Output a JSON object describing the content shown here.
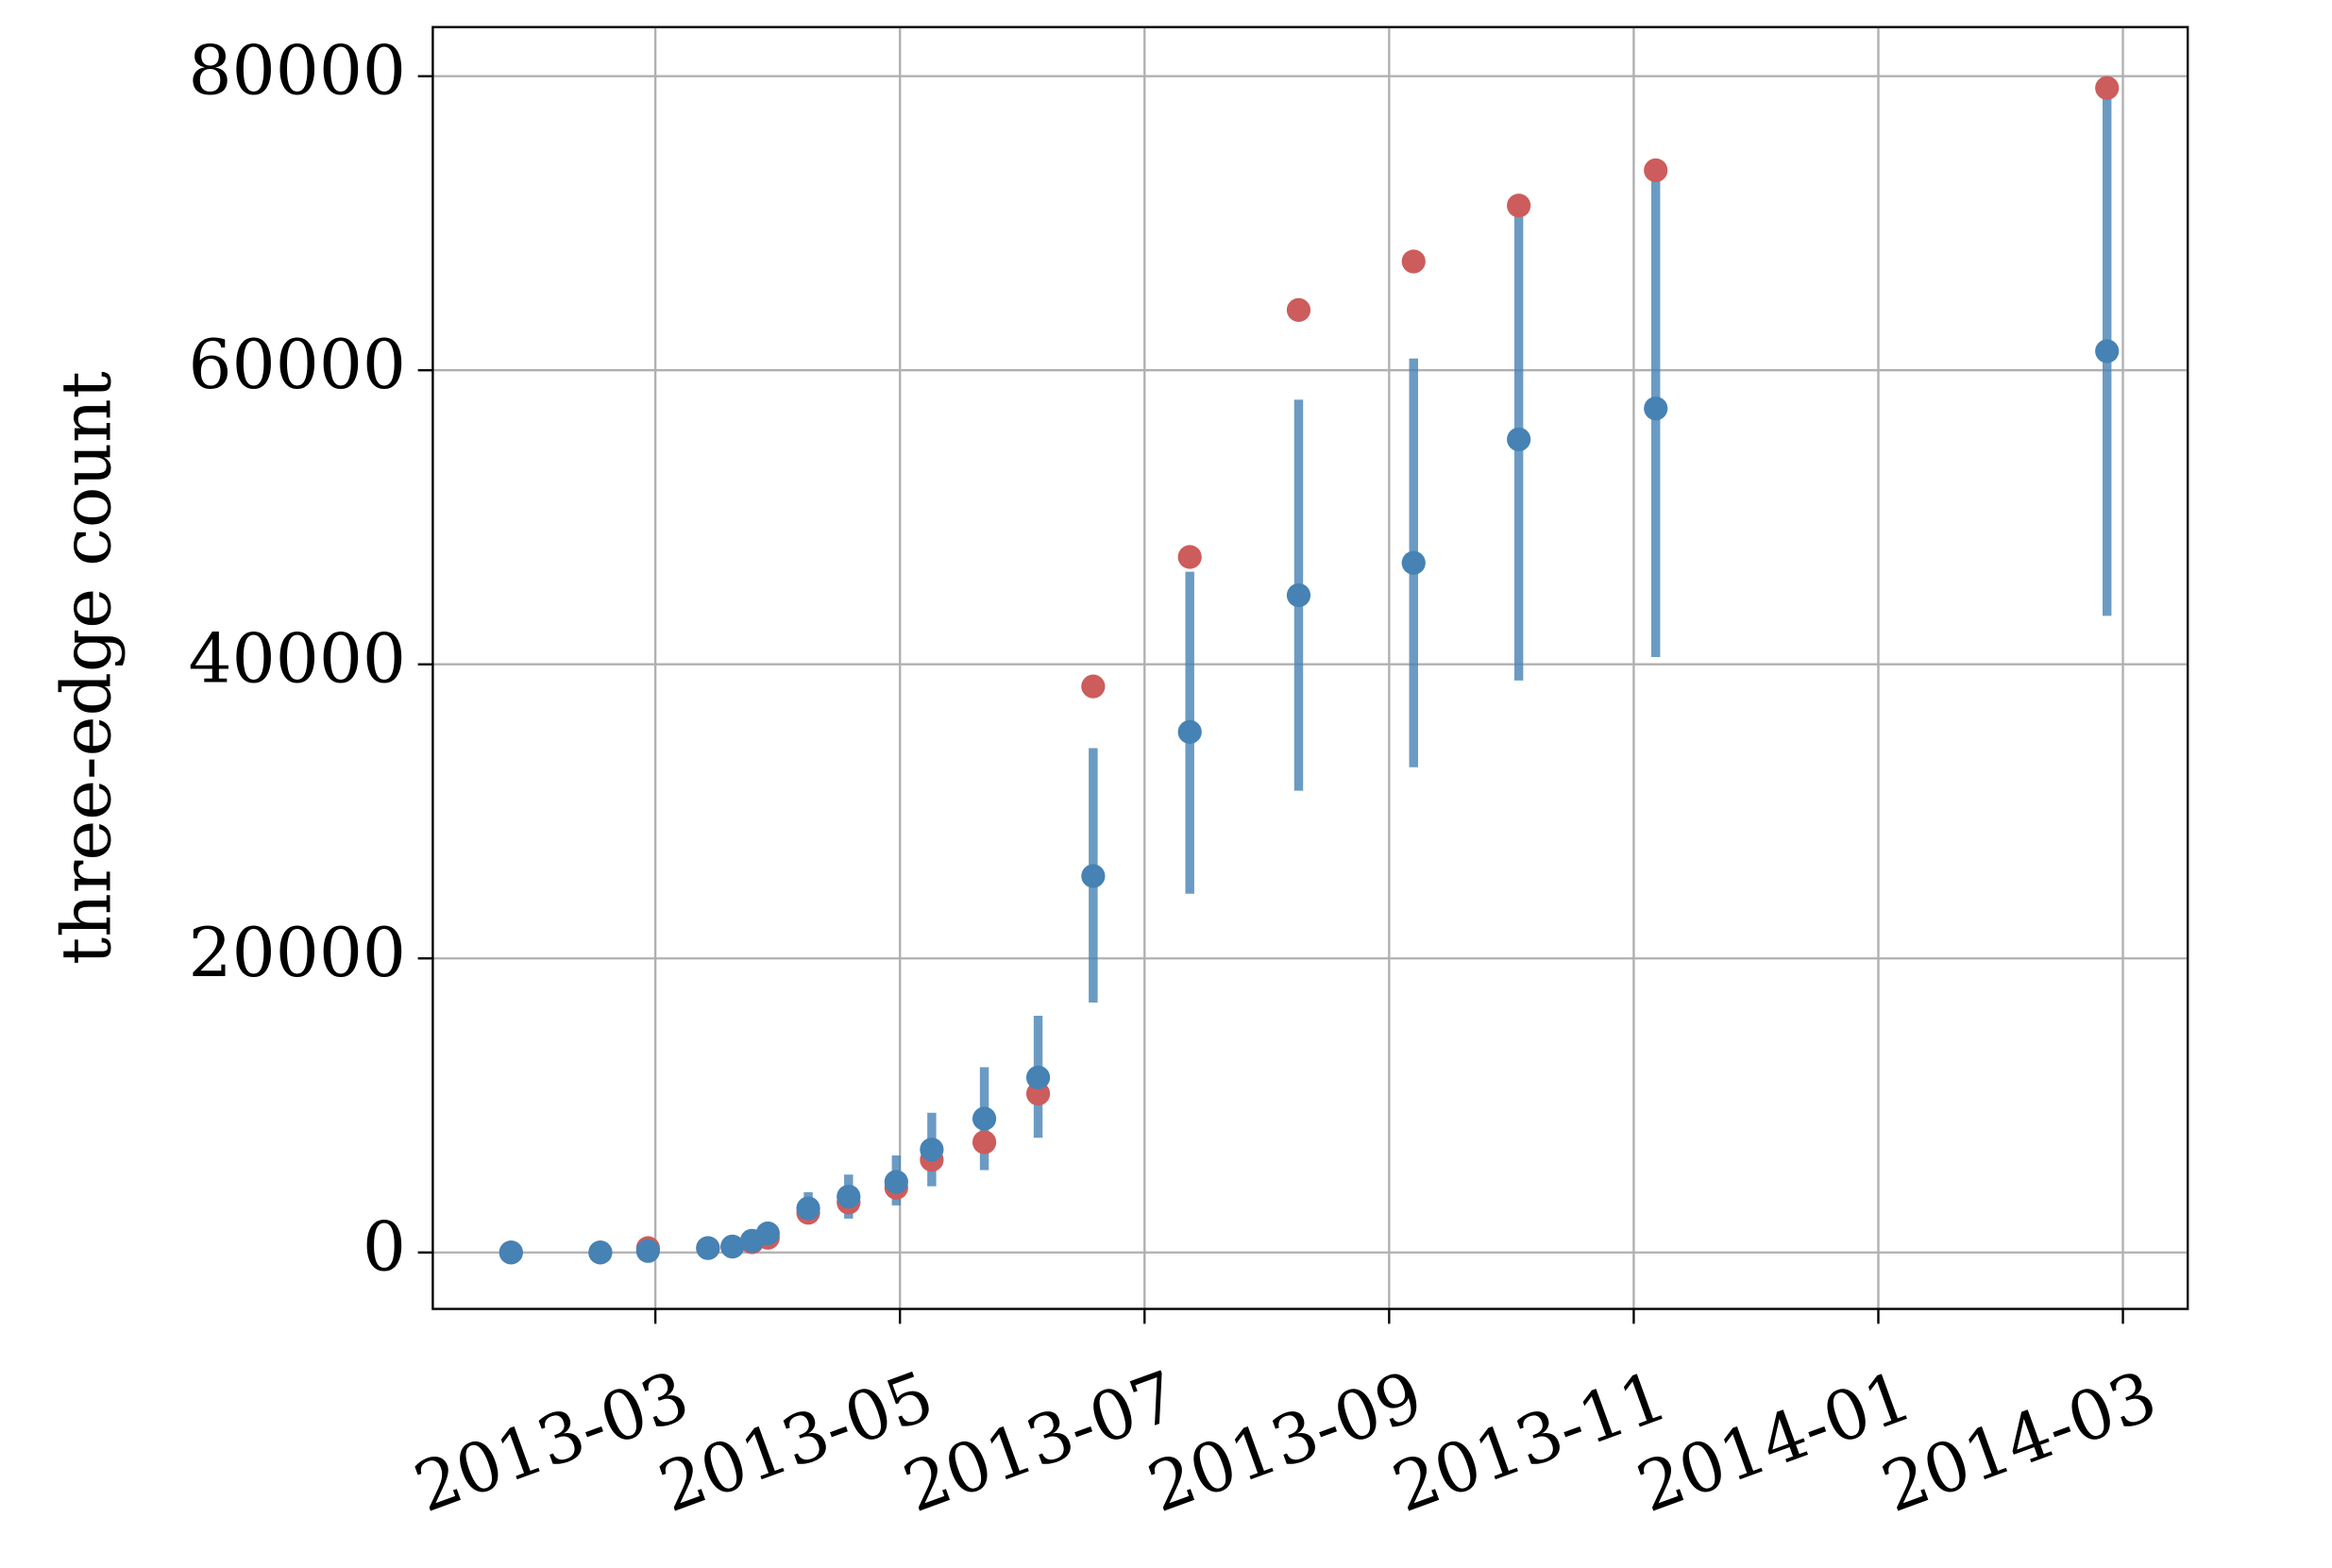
{
  "chart_data": {
    "type": "scatter",
    "y_label": "three-edge count",
    "xlim": [
      1.18,
      15.53
    ],
    "xticks": [
      {
        "value": 3,
        "label": "2013-03"
      },
      {
        "value": 5,
        "label": "2013-05"
      },
      {
        "value": 7,
        "label": "2013-07"
      },
      {
        "value": 9,
        "label": "2013-09"
      },
      {
        "value": 11,
        "label": "2013-11"
      },
      {
        "value": 13,
        "label": "2014-01"
      },
      {
        "value": 15,
        "label": "2014-03"
      }
    ],
    "ylim": [
      -3840,
      83340
    ],
    "yticks": [
      0,
      20000,
      40000,
      60000,
      80000
    ],
    "grid": true,
    "x": [
      1.82,
      2.55,
      2.94,
      3.43,
      3.63,
      3.79,
      3.92,
      4.25,
      4.58,
      4.97,
      5.26,
      5.69,
      6.13,
      6.58,
      7.37,
      8.26,
      9.2,
      10.06,
      11.18,
      14.87
    ],
    "series": [
      {
        "color": "#cd5c5c",
        "values": [
          0,
          0,
          300,
          300,
          400,
          700,
          1000,
          2700,
          3400,
          4400,
          6300,
          7500,
          10800,
          38500,
          47300,
          64100,
          67400,
          71200,
          73600,
          79200
        ]
      },
      {
        "color": "#4682b4",
        "values": [
          0,
          0,
          100,
          300,
          400,
          800,
          1300,
          3000,
          3800,
          4800,
          7000,
          9100,
          11900,
          25600,
          35400,
          44700,
          46900,
          55300,
          57400,
          61300
        ],
        "lower": [
          null,
          null,
          null,
          null,
          null,
          null,
          null,
          2300,
          2300,
          3200,
          4500,
          5600,
          7800,
          17000,
          24400,
          31400,
          33000,
          38900,
          40500,
          43300
        ],
        "upper": [
          null,
          null,
          null,
          null,
          null,
          null,
          null,
          4100,
          5300,
          6600,
          9500,
          12600,
          16100,
          34300,
          46300,
          58000,
          60800,
          70800,
          72900,
          78500
        ]
      }
    ]
  }
}
